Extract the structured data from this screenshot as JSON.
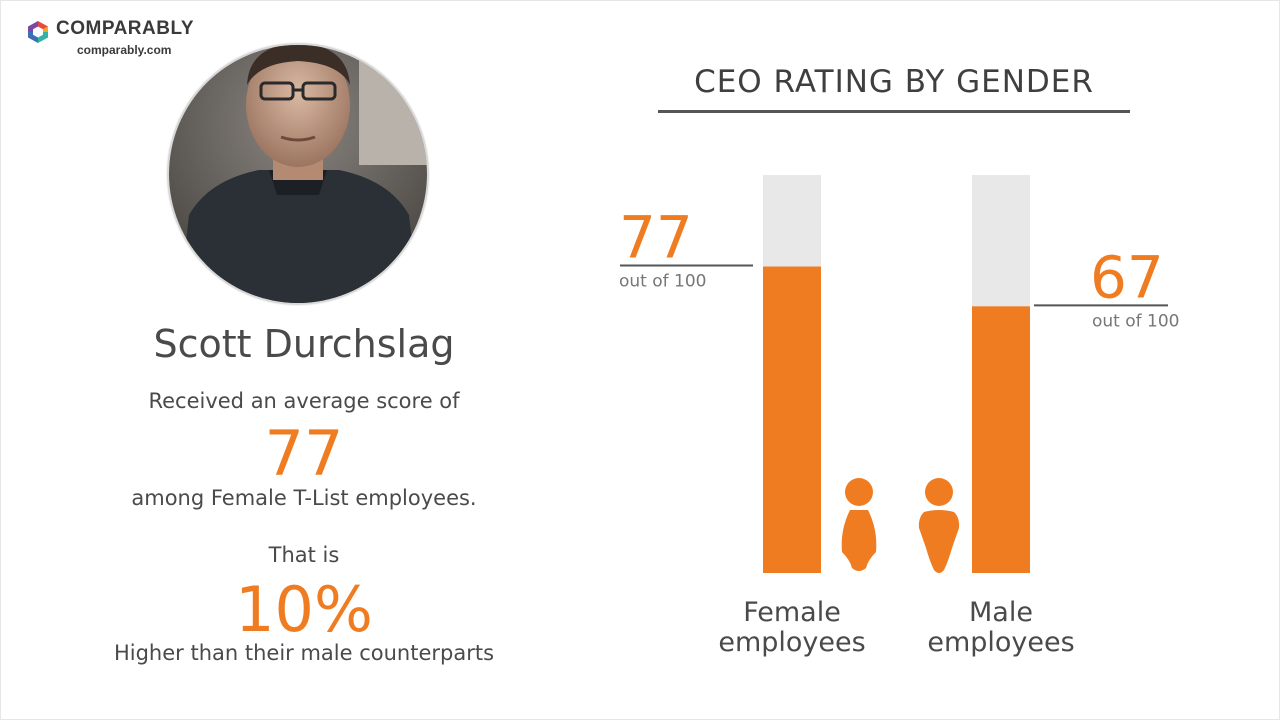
{
  "brand": {
    "name": "COMPARABLY",
    "url": "comparably.com",
    "mark_colors": [
      "#e8483d",
      "#f6a623",
      "#33b3a6",
      "#3d6fb6",
      "#7b4aa0"
    ]
  },
  "profile": {
    "name": "Scott Durchslag",
    "intro": "Received an average score of",
    "score": "77",
    "audience": "among Female T-List employees.",
    "that_is": "That is",
    "difference": "10%",
    "comparison": "Higher than their male counterparts"
  },
  "colors": {
    "accent": "#f07c22",
    "track": "#e8e8e8",
    "text": "#4a4a4a"
  },
  "chart_data": {
    "type": "bar",
    "title": "CEO RATING BY GENDER",
    "categories": [
      "Female\nemployees",
      "Male\nemployees"
    ],
    "values": [
      77,
      67
    ],
    "value_labels": [
      "77",
      "67"
    ],
    "value_sublabels": [
      "out of 100",
      "out of 100"
    ],
    "icons": [
      "female-person-icon",
      "male-person-icon"
    ],
    "ylim": [
      0,
      100
    ],
    "grid": false,
    "legend": "none"
  }
}
